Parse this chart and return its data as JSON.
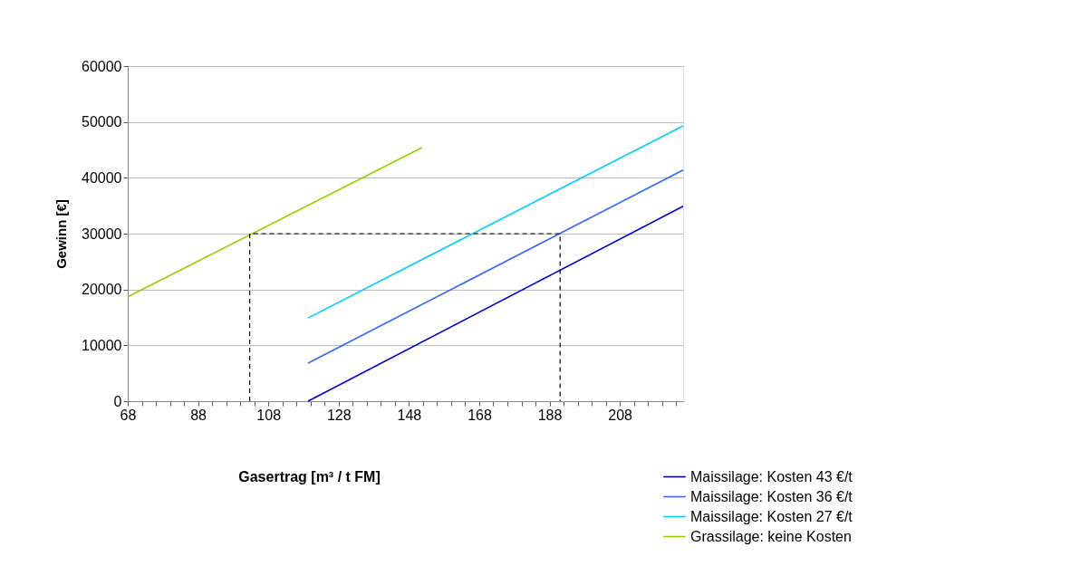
{
  "chart_data": {
    "type": "line",
    "xlabel": "Gasertrag [m³ / t FM]",
    "ylabel": "Gewinn [€]",
    "xlim": [
      68,
      226
    ],
    "ylim": [
      0,
      60000
    ],
    "xticks": [
      68,
      {
        "value": 72,
        "label": null
      },
      {
        "value": 76,
        "label": null
      },
      {
        "value": 80,
        "label": null
      },
      {
        "value": 84,
        "label": null
      },
      88,
      {
        "value": 92,
        "label": null
      },
      {
        "value": 96,
        "label": null
      },
      {
        "value": 100,
        "label": null
      },
      {
        "value": 104,
        "label": null
      },
      108,
      {
        "value": 112,
        "label": null
      },
      {
        "value": 116,
        "label": null
      },
      {
        "value": 120,
        "label": null
      },
      {
        "value": 124,
        "label": null
      },
      128,
      {
        "value": 132,
        "label": null
      },
      {
        "value": 136,
        "label": null
      },
      {
        "value": 140,
        "label": null
      },
      {
        "value": 144,
        "label": null
      },
      148,
      {
        "value": 152,
        "label": null
      },
      {
        "value": 156,
        "label": null
      },
      {
        "value": 160,
        "label": null
      },
      {
        "value": 164,
        "label": null
      },
      168,
      {
        "value": 172,
        "label": null
      },
      {
        "value": 176,
        "label": null
      },
      {
        "value": 180,
        "label": null
      },
      {
        "value": 184,
        "label": null
      },
      188,
      {
        "value": 192,
        "label": null
      },
      {
        "value": 196,
        "label": null
      },
      {
        "value": 200,
        "label": null
      },
      {
        "value": 204,
        "label": null
      },
      208,
      {
        "value": 212,
        "label": null
      },
      {
        "value": 216,
        "label": null
      },
      {
        "value": 220,
        "label": null
      },
      {
        "value": 224,
        "label": null
      }
    ],
    "yticks": [
      0,
      10000,
      20000,
      30000,
      40000,
      50000,
      60000
    ],
    "grid": "y",
    "legend": "bottom right",
    "marker": "none",
    "line_style": "solid",
    "series": [
      {
        "name": "Maissilage: Kosten 43 €/t",
        "color": "#0000cc",
        "x": [
          119.3,
          226
        ],
        "values": [
          0,
          34900
        ]
      },
      {
        "name": "Maissilage: Kosten 36 €/t",
        "color": "#3366ff",
        "x": [
          119.3,
          226
        ],
        "values": [
          6800,
          41400
        ]
      },
      {
        "name": "Maissilage: Kosten 27 €/t",
        "color": "#00ccff",
        "x": [
          119.3,
          226
        ],
        "values": [
          14900,
          49300
        ]
      },
      {
        "name": "Grassilage: keine Kosten",
        "color": "#99cc00",
        "x": [
          68,
          151.7
        ],
        "values": [
          18700,
          45400
        ]
      },
      {
        "color": "#000000",
        "line_style": "dashed",
        "x": [
          102.7,
          102.7,
          191,
          191
        ],
        "values": [
          0,
          30000,
          30000,
          0
        ]
      }
    ]
  }
}
